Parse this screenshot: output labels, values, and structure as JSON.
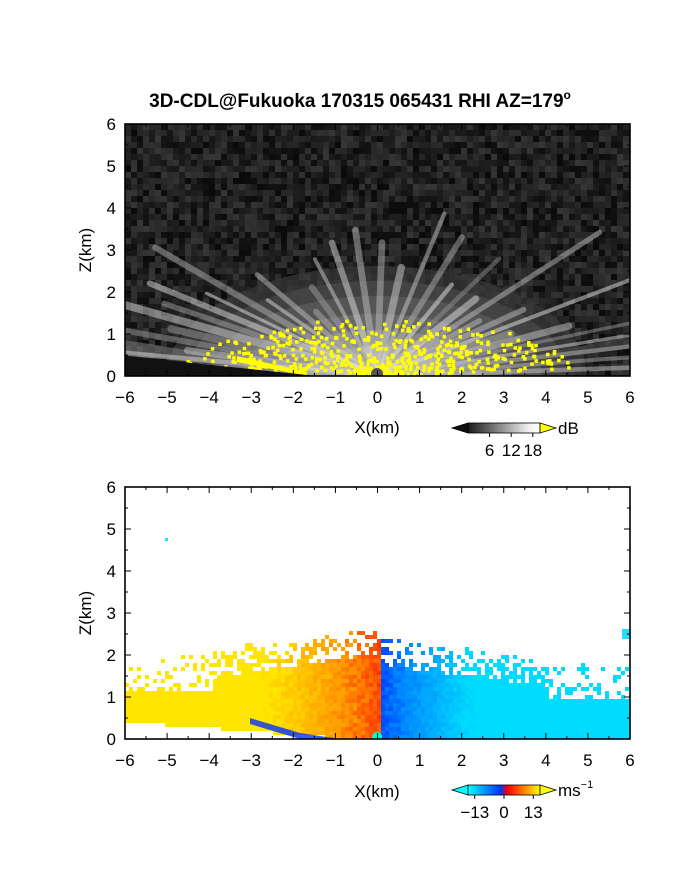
{
  "figure_title": "3D-CDL@Fukuoka 170315 065431 RHI AZ=179",
  "title_degree_mark": "o",
  "chart_data": [
    {
      "type": "heatmap",
      "name": "reflectivity",
      "xlabel": "X(km)",
      "ylabel": "Z(km)",
      "xlim": [
        -6,
        6
      ],
      "ylim": [
        0,
        6
      ],
      "x_ticks": [
        "−6",
        "−5",
        "−4",
        "−3",
        "−2",
        "−1",
        "0",
        "1",
        "2",
        "3",
        "4",
        "5",
        "6"
      ],
      "y_ticks": [
        "0",
        "1",
        "2",
        "3",
        "4",
        "5",
        "6"
      ],
      "colorbar": {
        "unit": "dB",
        "tick_labels": [
          "6",
          "12",
          "18"
        ],
        "tick_values": [
          6,
          12,
          18
        ],
        "range": [
          0,
          20
        ],
        "colors": [
          "#1a1a1a",
          "#ffffff",
          "#ffff00"
        ]
      },
      "colormap": "grayscale, saturated yellow above 18 dB",
      "grid": false
    },
    {
      "type": "heatmap",
      "name": "doppler-velocity",
      "xlabel": "X(km)",
      "ylabel": "Z(km)",
      "xlim": [
        -6,
        6
      ],
      "ylim": [
        0,
        6
      ],
      "x_ticks": [
        "−6",
        "−5",
        "−4",
        "−3",
        "−2",
        "−1",
        "0",
        "1",
        "2",
        "3",
        "4",
        "5",
        "6"
      ],
      "y_ticks": [
        "0",
        "1",
        "2",
        "3",
        "4",
        "5",
        "6"
      ],
      "colorbar": {
        "unit": "ms",
        "unit_superscript": "−1",
        "tick_labels": [
          "−13",
          "0",
          "13"
        ],
        "tick_values": [
          -13,
          0,
          13
        ],
        "range": [
          -16,
          16
        ],
        "colors": [
          "#00ffff",
          "#0033ff",
          "#ff0000",
          "#ffff00"
        ]
      },
      "colormap": "cyan-blue for negative, red-yellow for positive",
      "grid": false
    }
  ]
}
